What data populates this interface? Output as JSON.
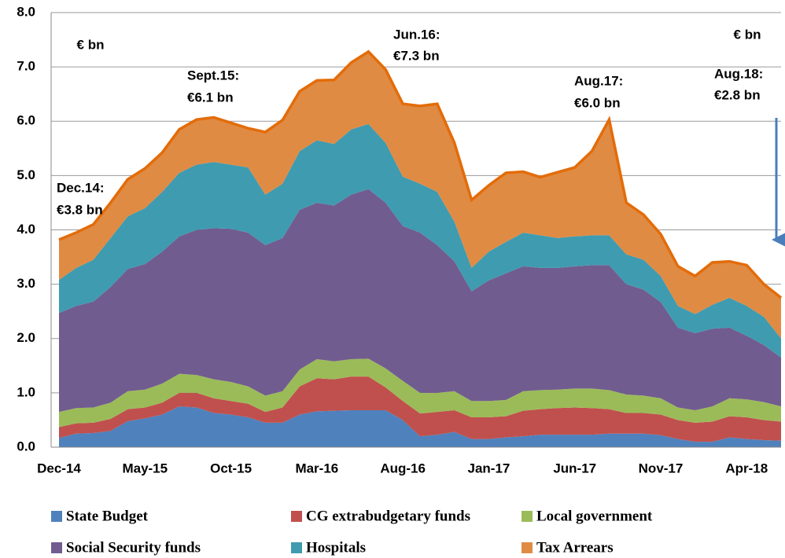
{
  "chart_data": {
    "type": "stacked_area",
    "categories": [
      "Dec-14",
      null,
      null,
      null,
      null,
      "May-15",
      null,
      null,
      null,
      null,
      "Oct-15",
      null,
      null,
      null,
      null,
      "Mar-16",
      null,
      null,
      null,
      null,
      "Aug-16",
      null,
      null,
      null,
      null,
      "Jan-17",
      null,
      null,
      null,
      null,
      "Jun-17",
      null,
      null,
      null,
      null,
      "Nov-17",
      null,
      null,
      null,
      null,
      "Apr-18",
      null,
      null
    ],
    "ylim": [
      0,
      8
    ],
    "yticks": [
      {
        "value": 0,
        "label": "0.0"
      },
      {
        "value": 1,
        "label": "1.0"
      },
      {
        "value": 2,
        "label": "2.0"
      },
      {
        "value": 3,
        "label": "3.0"
      },
      {
        "value": 4,
        "label": "4.0"
      },
      {
        "value": 5,
        "label": "5.0"
      },
      {
        "value": 6,
        "label": "6.0"
      },
      {
        "value": 7,
        "label": "7.0"
      },
      {
        "value": 8,
        "label": "8.0"
      }
    ],
    "grid": true,
    "annotations": [
      "€ bn",
      "€ bn",
      "Dec.14:",
      "€3.8 bn",
      "Sept.15:",
      "€6.1 bn",
      "Jun.16:",
      "€7.3 bn",
      "Aug.17:",
      "€6.0 bn",
      "Aug.18:",
      "€2.8 bn"
    ],
    "series": [
      {
        "name": "State Budget",
        "color": "#4f81bd",
        "values": [
          0.17,
          0.25,
          0.26,
          0.3,
          0.48,
          0.53,
          0.6,
          0.75,
          0.73,
          0.63,
          0.6,
          0.55,
          0.45,
          0.45,
          0.6,
          0.66,
          0.67,
          0.68,
          0.68,
          0.68,
          0.5,
          0.2,
          0.23,
          0.28,
          0.15,
          0.15,
          0.18,
          0.2,
          0.23,
          0.23,
          0.23,
          0.23,
          0.25,
          0.25,
          0.25,
          0.22,
          0.15,
          0.1,
          0.1,
          0.18,
          0.15,
          0.13,
          0.12
        ]
      },
      {
        "name": "CG extrabudgetary funds",
        "color": "#c0504d",
        "values": [
          0.2,
          0.19,
          0.19,
          0.22,
          0.22,
          0.2,
          0.22,
          0.25,
          0.27,
          0.27,
          0.25,
          0.25,
          0.2,
          0.28,
          0.52,
          0.61,
          0.58,
          0.62,
          0.62,
          0.42,
          0.35,
          0.42,
          0.42,
          0.4,
          0.4,
          0.4,
          0.39,
          0.47,
          0.47,
          0.49,
          0.5,
          0.49,
          0.45,
          0.38,
          0.38,
          0.38,
          0.35,
          0.35,
          0.37,
          0.39,
          0.4,
          0.37,
          0.35
        ]
      },
      {
        "name": "Local government",
        "color": "#9bbb59",
        "values": [
          0.28,
          0.28,
          0.28,
          0.3,
          0.33,
          0.33,
          0.35,
          0.35,
          0.33,
          0.35,
          0.35,
          0.32,
          0.3,
          0.3,
          0.31,
          0.35,
          0.33,
          0.32,
          0.33,
          0.35,
          0.37,
          0.38,
          0.35,
          0.35,
          0.3,
          0.3,
          0.3,
          0.36,
          0.35,
          0.34,
          0.35,
          0.36,
          0.35,
          0.34,
          0.32,
          0.3,
          0.23,
          0.23,
          0.28,
          0.33,
          0.33,
          0.33,
          0.28
        ]
      },
      {
        "name": "Social Security funds",
        "color": "#715c8f",
        "values": [
          1.82,
          1.88,
          1.95,
          2.13,
          2.25,
          2.31,
          2.43,
          2.53,
          2.67,
          2.78,
          2.82,
          2.83,
          2.77,
          2.82,
          2.94,
          2.88,
          2.87,
          3.03,
          3.12,
          3.05,
          2.85,
          2.95,
          2.72,
          2.39,
          2.02,
          2.22,
          2.33,
          2.3,
          2.25,
          2.24,
          2.25,
          2.27,
          2.3,
          2.03,
          1.95,
          1.77,
          1.47,
          1.42,
          1.43,
          1.3,
          1.17,
          1.05,
          0.9
        ]
      },
      {
        "name": "Hospitals",
        "color": "#3f9bb0",
        "values": [
          0.61,
          0.7,
          0.77,
          0.9,
          0.97,
          1.03,
          1.1,
          1.17,
          1.2,
          1.22,
          1.18,
          1.2,
          0.93,
          1.0,
          1.08,
          1.15,
          1.13,
          1.2,
          1.2,
          1.1,
          0.91,
          0.9,
          0.98,
          0.73,
          0.43,
          0.53,
          0.58,
          0.62,
          0.6,
          0.55,
          0.55,
          0.55,
          0.55,
          0.55,
          0.55,
          0.48,
          0.4,
          0.35,
          0.44,
          0.55,
          0.55,
          0.52,
          0.35
        ]
      },
      {
        "name": "Tax Arrears",
        "color": "#e08b43",
        "values": [
          0.74,
          0.65,
          0.65,
          0.65,
          0.68,
          0.73,
          0.72,
          0.8,
          0.83,
          0.82,
          0.77,
          0.72,
          1.15,
          1.17,
          1.1,
          1.1,
          1.18,
          1.23,
          1.33,
          1.35,
          1.34,
          1.43,
          1.62,
          1.45,
          1.25,
          1.22,
          1.27,
          1.12,
          1.07,
          1.21,
          1.27,
          1.55,
          2.13,
          0.95,
          0.83,
          0.77,
          0.73,
          0.7,
          0.78,
          0.67,
          0.75,
          0.6,
          0.75
        ]
      }
    ],
    "outline_color": "#e36c09"
  }
}
